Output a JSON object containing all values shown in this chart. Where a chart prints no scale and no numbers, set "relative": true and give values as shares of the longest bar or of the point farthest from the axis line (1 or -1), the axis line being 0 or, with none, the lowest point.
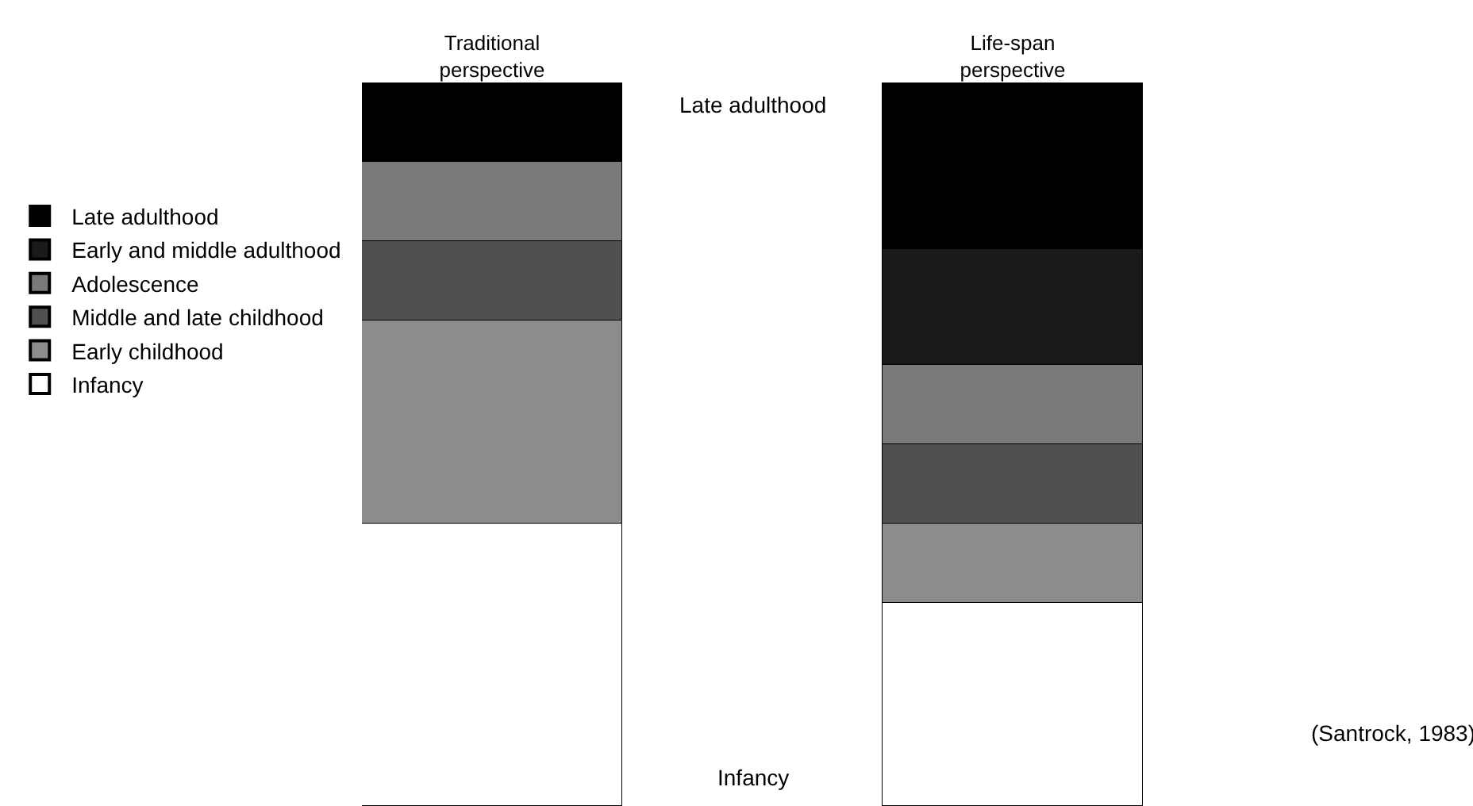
{
  "chart_data": {
    "type": "bar",
    "stacked": true,
    "relative": true,
    "legend": "left",
    "categories": [
      "Traditional perspective",
      "Life-span perspective"
    ],
    "series": [
      {
        "name": "Infancy",
        "color": "#ffffff",
        "values": [
          0.39,
          0.28
        ]
      },
      {
        "name": "Early childhood",
        "color": "#8c8c8c",
        "values": [
          0.28,
          0.11
        ]
      },
      {
        "name": "Middle and late childhood",
        "color": "#505050",
        "values": [
          0.11,
          0.11
        ]
      },
      {
        "name": "Adolescence",
        "color": "#7a7a7a",
        "values": [
          0.11,
          0.11
        ]
      },
      {
        "name": "Early and middle adulthood",
        "color": "#1a1a1a",
        "values": [
          0,
          0.16
        ]
      },
      {
        "name": "Late adulthood",
        "color": "#000000",
        "values": [
          0.11,
          0.23
        ]
      }
    ],
    "annotations": [
      "Late adulthood",
      "Infancy",
      "(Santrock, 1983)"
    ]
  }
}
